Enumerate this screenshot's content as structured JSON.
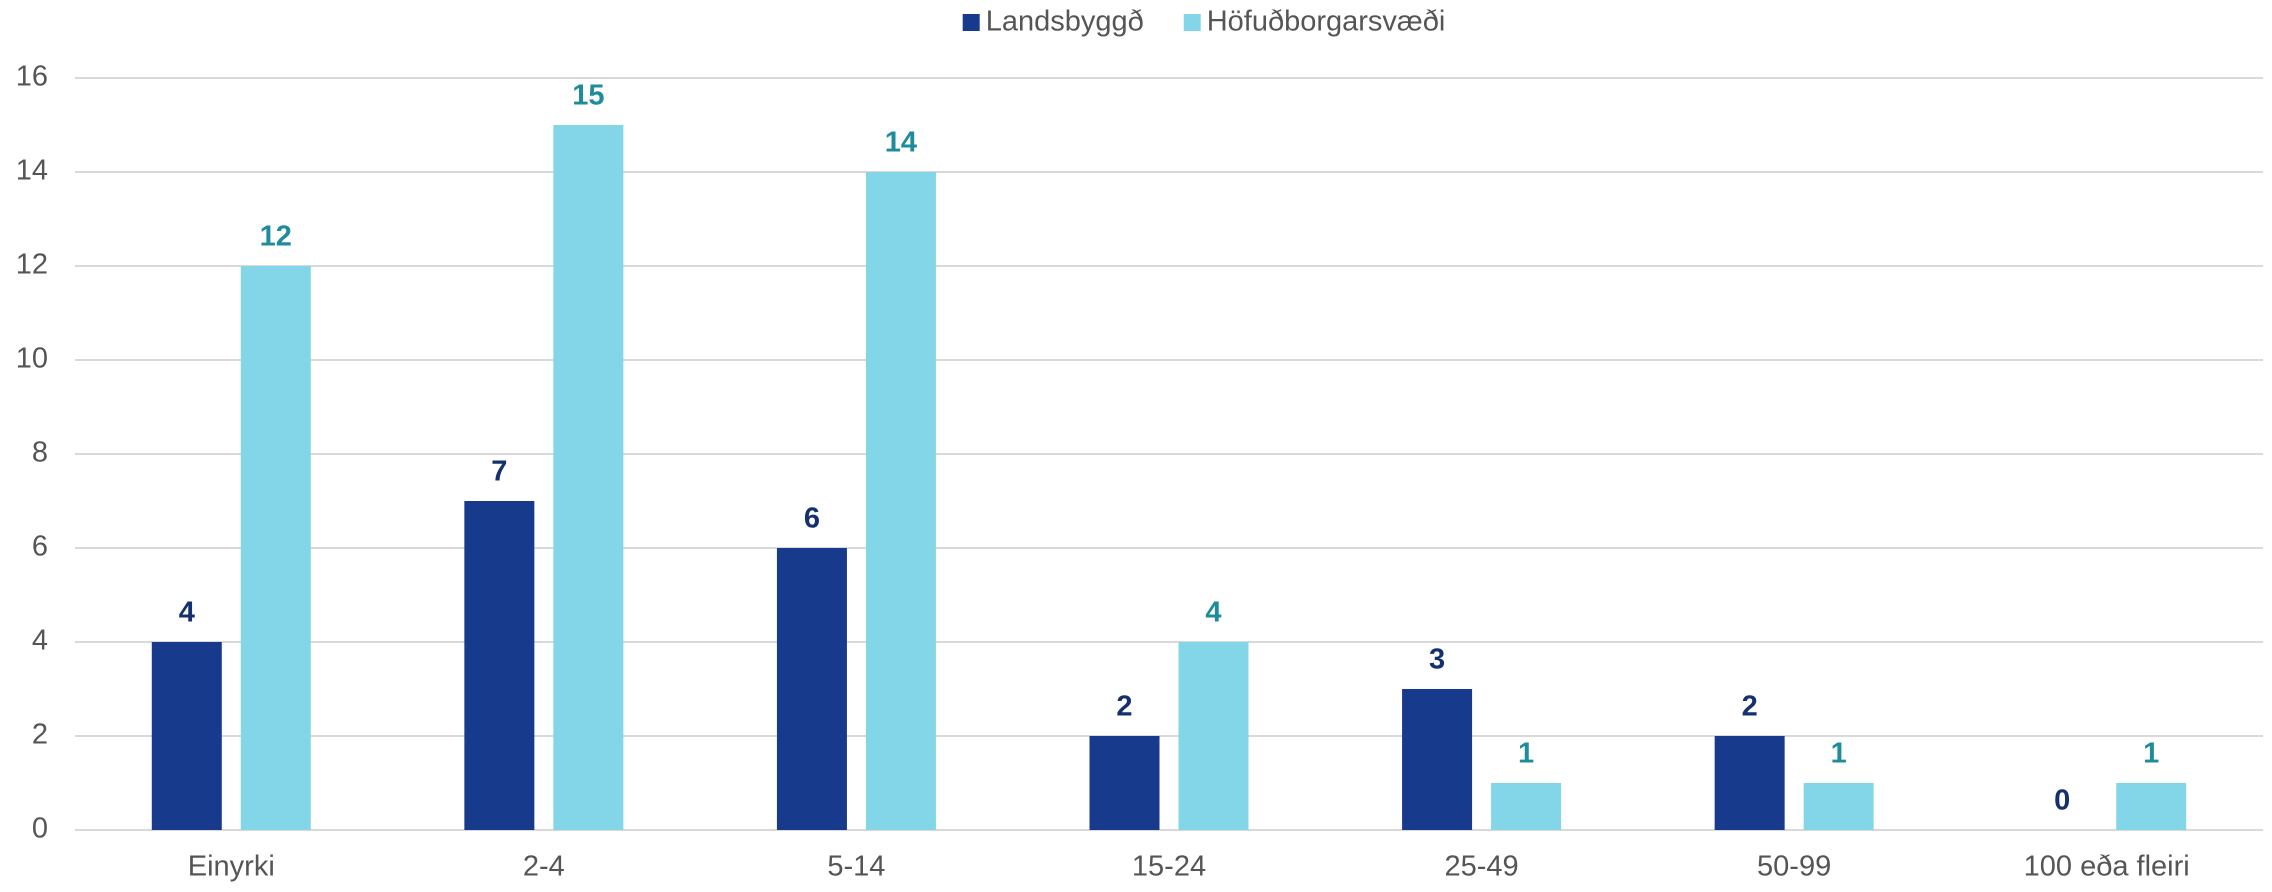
{
  "chart_data": {
    "type": "bar",
    "categories": [
      "Einyrki",
      "2-4",
      "5-14",
      "15-24",
      "25-49",
      "50-99",
      "100 eða fleiri"
    ],
    "series": [
      {
        "name": "Landsbyggð",
        "color": "#173a8c",
        "label_color": "#14306e",
        "values": [
          4,
          7,
          6,
          2,
          3,
          2,
          0
        ]
      },
      {
        "name": "Höfuðborgarsvæði",
        "color": "#83d5e8",
        "label_color": "#1f8c9c",
        "values": [
          12,
          15,
          14,
          4,
          1,
          1,
          1
        ]
      }
    ],
    "ylim": [
      0,
      16
    ],
    "yticks": [
      0,
      2,
      4,
      6,
      8,
      10,
      12,
      14,
      16
    ],
    "grid": true,
    "legend": "top"
  }
}
